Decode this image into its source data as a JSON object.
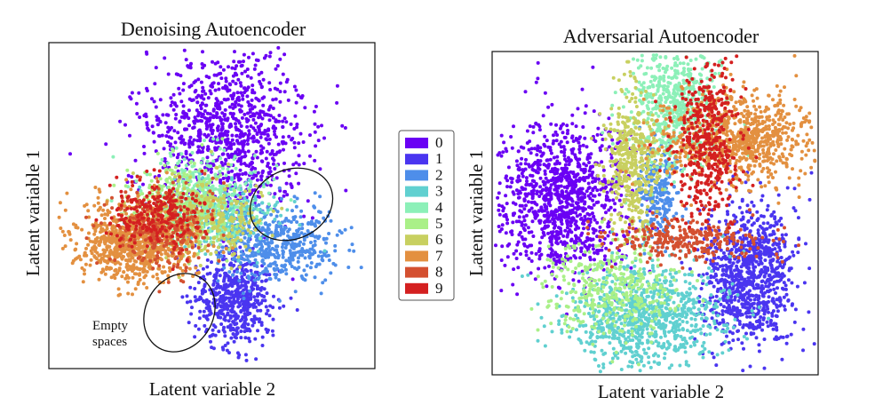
{
  "chart_data": [
    {
      "type": "scatter",
      "title": "Denoising Autoencoder",
      "xlabel": "Latent variable 2",
      "ylabel": "Latent variable 1",
      "annotations": [
        {
          "text_lines": [
            "Empty",
            "spaces"
          ]
        }
      ],
      "grid": false,
      "series": [
        {
          "name": "0",
          "color": "#6a00f4",
          "cx": 0.55,
          "cy": 0.28,
          "sx": 0.12,
          "sy": 0.13,
          "n": 1000
        },
        {
          "name": "1",
          "color": "#4a35f0",
          "cx": 0.57,
          "cy": 0.79,
          "sx": 0.06,
          "sy": 0.07,
          "n": 550
        },
        {
          "name": "2",
          "color": "#4e8eea",
          "cx": 0.7,
          "cy": 0.62,
          "sx": 0.09,
          "sy": 0.06,
          "n": 500
        },
        {
          "name": "3",
          "color": "#60d0d0",
          "cx": 0.52,
          "cy": 0.53,
          "sx": 0.09,
          "sy": 0.05,
          "n": 300
        },
        {
          "name": "4",
          "color": "#8cf0b8",
          "cx": 0.47,
          "cy": 0.47,
          "sx": 0.09,
          "sy": 0.07,
          "n": 350
        },
        {
          "name": "5",
          "color": "#aaf088",
          "cx": 0.4,
          "cy": 0.5,
          "sx": 0.08,
          "sy": 0.06,
          "n": 300
        },
        {
          "name": "6",
          "color": "#c8d060",
          "cx": 0.48,
          "cy": 0.54,
          "sx": 0.09,
          "sy": 0.06,
          "n": 300
        },
        {
          "name": "7",
          "color": "#e39040",
          "cx": 0.27,
          "cy": 0.61,
          "sx": 0.09,
          "sy": 0.06,
          "n": 900
        },
        {
          "name": "8",
          "color": "#d45030",
          "cx": 0.35,
          "cy": 0.58,
          "sx": 0.08,
          "sy": 0.06,
          "n": 250
        },
        {
          "name": "9",
          "color": "#d42020",
          "cx": 0.33,
          "cy": 0.53,
          "sx": 0.07,
          "sy": 0.05,
          "n": 250
        }
      ]
    },
    {
      "type": "scatter",
      "title": "Adversarial Autoencoder",
      "xlabel": "Latent variable 2",
      "ylabel": "Latent variable 1",
      "grid": false,
      "series": [
        {
          "name": "0",
          "color": "#6a00f4",
          "cx": 0.21,
          "cy": 0.46,
          "sx": 0.1,
          "sy": 0.12,
          "n": 1100
        },
        {
          "name": "1",
          "color": "#4a35f0",
          "cx": 0.79,
          "cy": 0.69,
          "sx": 0.07,
          "sy": 0.11,
          "n": 950
        },
        {
          "name": "2",
          "color": "#4e8eea",
          "cx": 0.51,
          "cy": 0.44,
          "sx": 0.03,
          "sy": 0.08,
          "n": 250
        },
        {
          "name": "3",
          "color": "#60d0d0",
          "cx": 0.48,
          "cy": 0.82,
          "sx": 0.12,
          "sy": 0.08,
          "n": 900
        },
        {
          "name": "4",
          "color": "#8cf0b8",
          "cx": 0.56,
          "cy": 0.15,
          "sx": 0.07,
          "sy": 0.1,
          "n": 600
        },
        {
          "name": "5",
          "color": "#aaf088",
          "cx": 0.37,
          "cy": 0.74,
          "sx": 0.1,
          "sy": 0.07,
          "n": 400
        },
        {
          "name": "6",
          "color": "#c8d060",
          "cx": 0.43,
          "cy": 0.34,
          "sx": 0.04,
          "sy": 0.11,
          "n": 450
        },
        {
          "name": "7",
          "color": "#e39040",
          "cx": 0.77,
          "cy": 0.27,
          "sx": 0.12,
          "sy": 0.07,
          "n": 850
        },
        {
          "name": "8",
          "color": "#d45030",
          "cx": 0.6,
          "cy": 0.58,
          "sx": 0.12,
          "sy": 0.03,
          "n": 300
        },
        {
          "name": "9",
          "color": "#d42020",
          "cx": 0.66,
          "cy": 0.28,
          "sx": 0.05,
          "sy": 0.12,
          "n": 450
        }
      ]
    }
  ],
  "legend": {
    "entries": [
      {
        "label": "0",
        "color": "#6a00f4"
      },
      {
        "label": "1",
        "color": "#4a35f0"
      },
      {
        "label": "2",
        "color": "#4e8eea"
      },
      {
        "label": "3",
        "color": "#60d0d0"
      },
      {
        "label": "4",
        "color": "#8cf0b8"
      },
      {
        "label": "5",
        "color": "#aaf088"
      },
      {
        "label": "6",
        "color": "#c8d060"
      },
      {
        "label": "7",
        "color": "#e39040"
      },
      {
        "label": "8",
        "color": "#d45030"
      },
      {
        "label": "9",
        "color": "#d42020"
      }
    ]
  }
}
